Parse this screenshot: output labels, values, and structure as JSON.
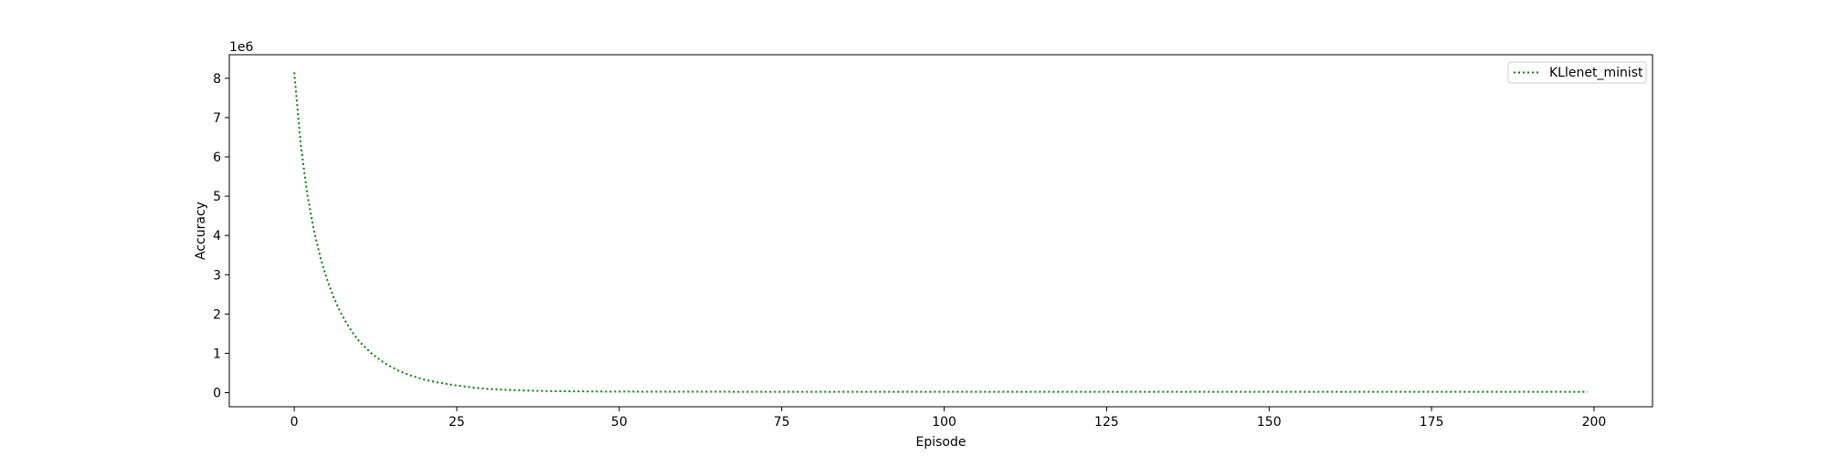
{
  "chart_data": {
    "type": "line",
    "title": "",
    "xlabel": "Episode",
    "ylabel": "Accuracy",
    "y_offset_text": "1e6",
    "y_scale_factor": 1000000,
    "xlim": [
      -10,
      209
    ],
    "ylim": [
      -360000,
      8600000
    ],
    "x_ticks": [
      0,
      25,
      50,
      75,
      100,
      125,
      150,
      175,
      200
    ],
    "x_tick_labels": [
      "0",
      "25",
      "50",
      "75",
      "100",
      "125",
      "150",
      "175",
      "200"
    ],
    "y_ticks": [
      0,
      1000000,
      2000000,
      3000000,
      4000000,
      5000000,
      6000000,
      7000000,
      8000000
    ],
    "y_tick_labels": [
      "0",
      "1",
      "2",
      "3",
      "4",
      "5",
      "6",
      "7",
      "8"
    ],
    "grid": false,
    "legend_position": "top-right",
    "series": [
      {
        "name": "KLlenet_minist",
        "color": "#008000",
        "line_style": "dotted",
        "x_range": [
          0,
          199
        ],
        "points": [
          [
            0,
            8150000
          ],
          [
            1,
            6300000
          ],
          [
            2,
            5050000
          ],
          [
            3,
            4150000
          ],
          [
            4,
            3450000
          ],
          [
            5,
            2900000
          ],
          [
            6,
            2450000
          ],
          [
            7,
            2080000
          ],
          [
            8,
            1780000
          ],
          [
            9,
            1520000
          ],
          [
            10,
            1300000
          ],
          [
            12,
            980000
          ],
          [
            14,
            740000
          ],
          [
            16,
            560000
          ],
          [
            18,
            430000
          ],
          [
            20,
            330000
          ],
          [
            22,
            260000
          ],
          [
            25,
            180000
          ],
          [
            28,
            120000
          ],
          [
            30,
            90000
          ],
          [
            35,
            55000
          ],
          [
            40,
            35000
          ],
          [
            50,
            25000
          ],
          [
            75,
            20000
          ],
          [
            100,
            20000
          ],
          [
            150,
            20000
          ],
          [
            199,
            20000
          ]
        ]
      }
    ]
  }
}
